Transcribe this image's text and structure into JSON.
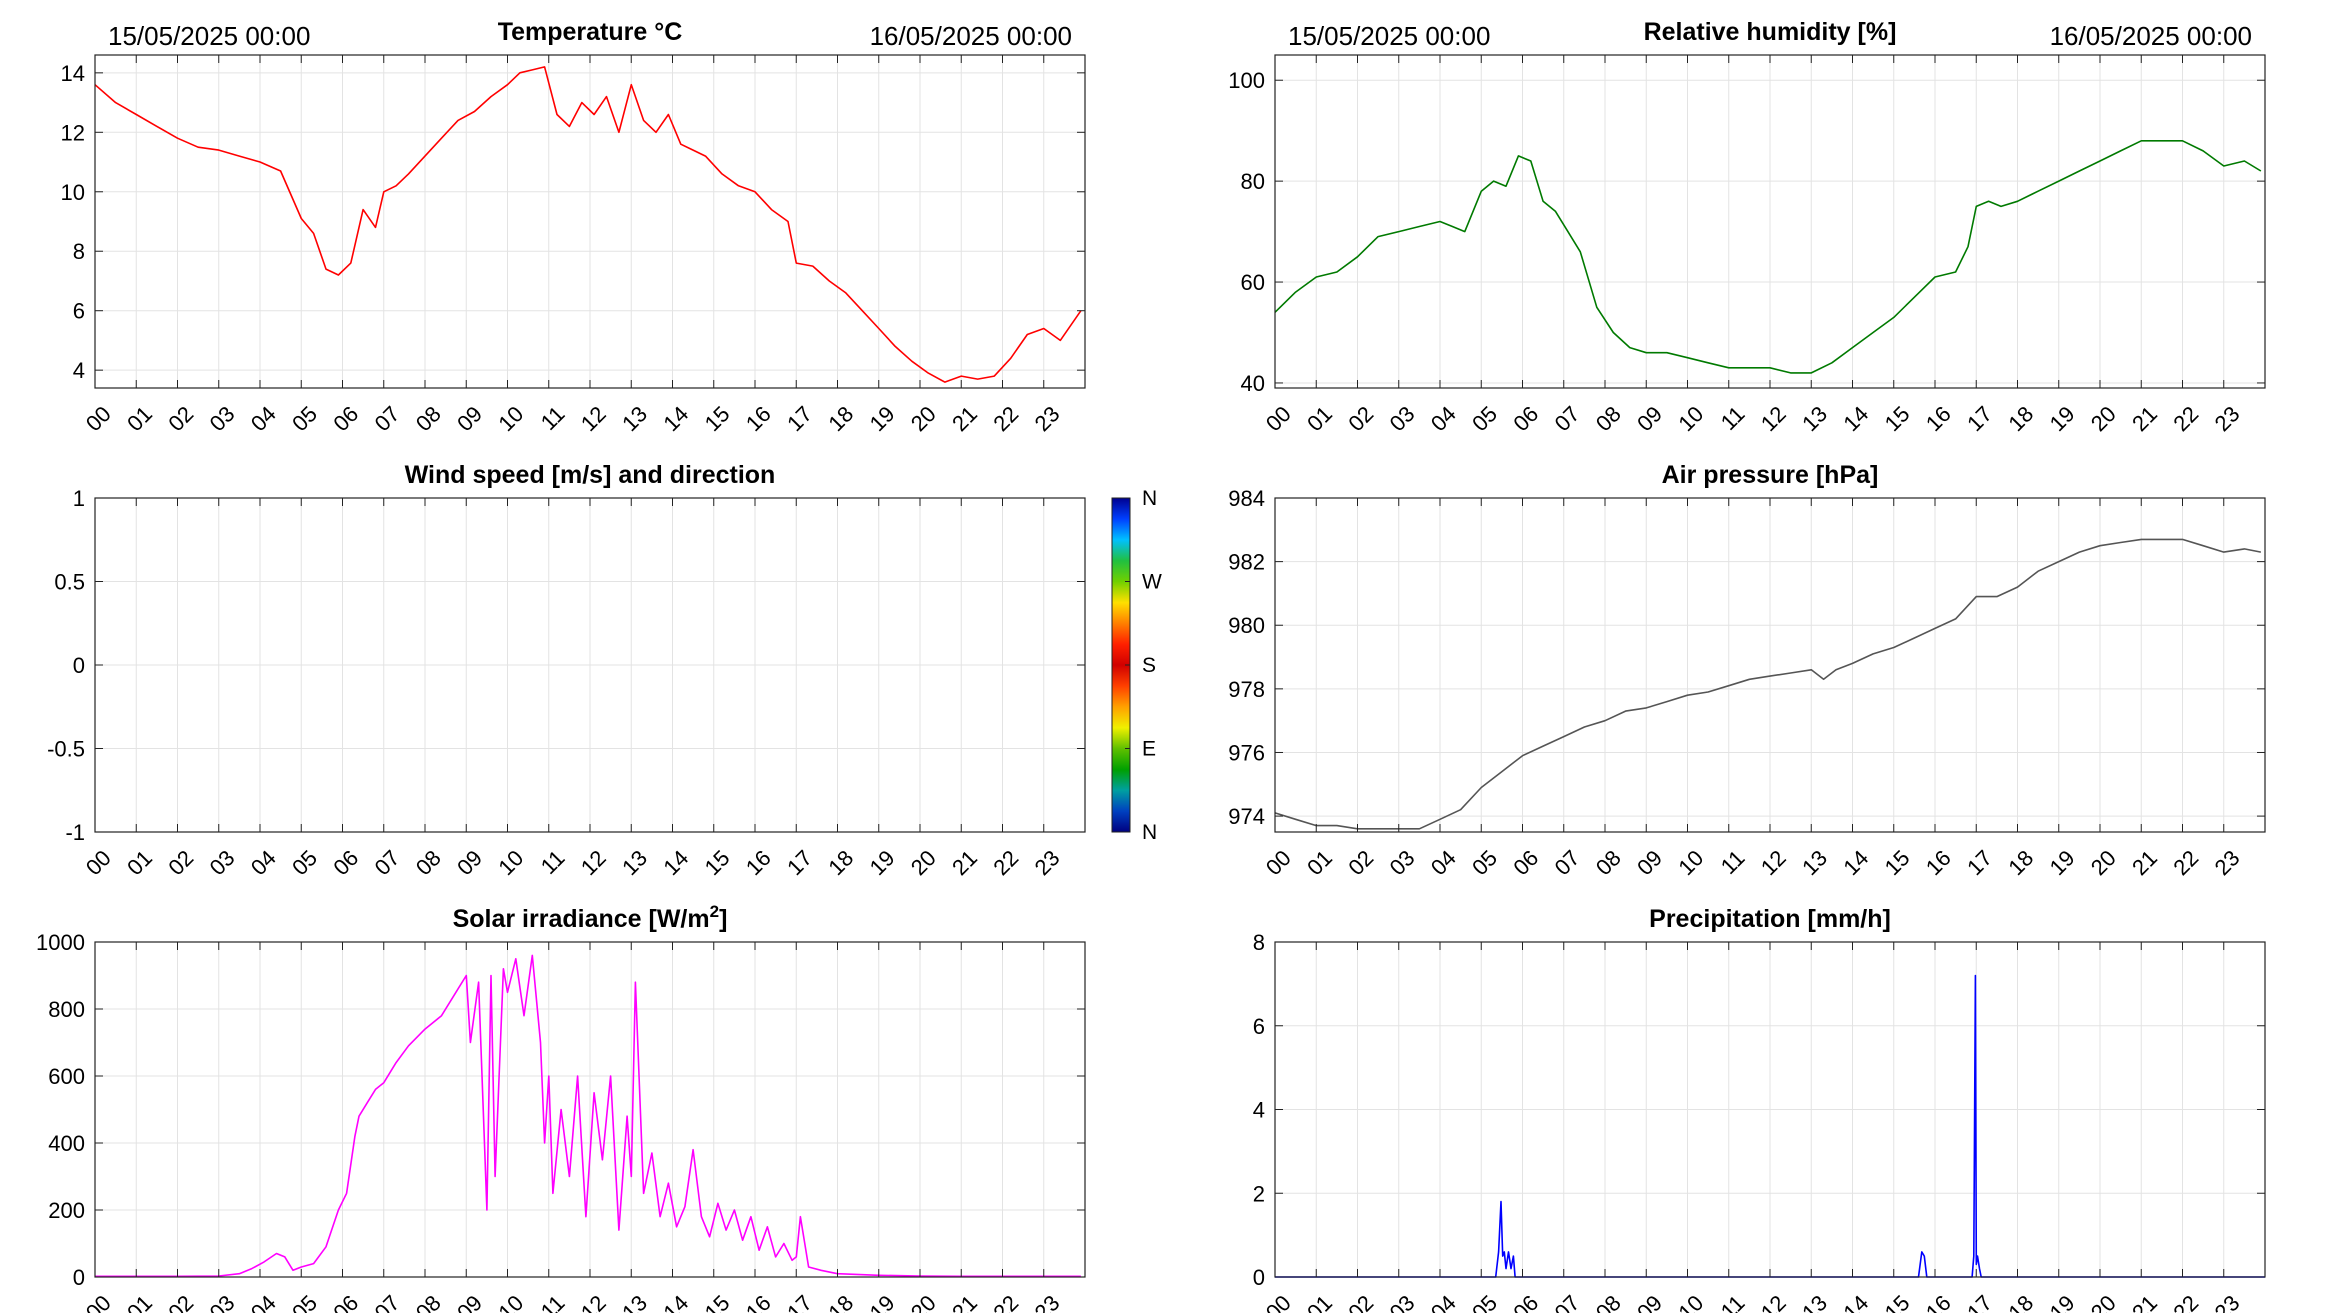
{
  "charts": {
    "temperature": {
      "type": "line",
      "title": "Temperature °C",
      "date_start": "15/05/2025 00:00",
      "date_end": "16/05/2025 00:00",
      "color": "#ff0000",
      "ylim": [
        3.4,
        14.6
      ],
      "yticks": [
        4,
        6,
        8,
        10,
        12,
        14
      ],
      "xlim": [
        0,
        24
      ],
      "series": [
        {
          "x": [
            0,
            0.5,
            1,
            1.5,
            2,
            2.5,
            3,
            3.5,
            4,
            4.5,
            5,
            5.3,
            5.6,
            5.9,
            6.2,
            6.5,
            6.8,
            7,
            7.3,
            7.6,
            8,
            8.4,
            8.8,
            9.2,
            9.6,
            10,
            10.3,
            10.6,
            10.9,
            11.2,
            11.5,
            11.8,
            12.1,
            12.4,
            12.7,
            13,
            13.3,
            13.6,
            13.9,
            14.2,
            14.5,
            14.8,
            15.2,
            15.6,
            16,
            16.4,
            16.8,
            17,
            17.4,
            17.8,
            18.2,
            18.6,
            19,
            19.4,
            19.8,
            20.2,
            20.6,
            21,
            21.4,
            21.8,
            22.2,
            22.6,
            23,
            23.4,
            23.9
          ],
          "y": [
            13.6,
            13.0,
            12.6,
            12.2,
            11.8,
            11.5,
            11.4,
            11.2,
            11.0,
            10.7,
            9.1,
            8.6,
            7.4,
            7.2,
            7.6,
            9.4,
            8.8,
            10.0,
            10.2,
            10.6,
            11.2,
            11.8,
            12.4,
            12.7,
            13.2,
            13.6,
            14.0,
            14.1,
            14.2,
            12.6,
            12.2,
            13.0,
            12.6,
            13.2,
            12.0,
            13.6,
            12.4,
            12.0,
            12.6,
            11.6,
            11.4,
            11.2,
            10.6,
            10.2,
            10.0,
            9.4,
            9.0,
            7.6,
            7.5,
            7.0,
            6.6,
            6.0,
            5.4,
            4.8,
            4.3,
            3.9,
            3.6,
            3.8,
            3.7,
            3.8,
            4.4,
            5.2,
            5.4,
            5.0,
            6.0
          ]
        }
      ]
    },
    "humidity": {
      "type": "line",
      "title": "Relative humidity [%]",
      "date_start": "15/05/2025 00:00",
      "date_end": "16/05/2025 00:00",
      "color": "#007a00",
      "ylim": [
        39,
        105
      ],
      "yticks": [
        40,
        60,
        80,
        100
      ],
      "xlim": [
        0,
        24
      ],
      "series": [
        {
          "x": [
            0,
            0.5,
            1,
            1.5,
            2,
            2.5,
            3,
            3.5,
            4,
            4.3,
            4.6,
            5,
            5.3,
            5.6,
            5.9,
            6.2,
            6.5,
            6.8,
            7.1,
            7.4,
            7.8,
            8.2,
            8.6,
            9,
            9.5,
            10,
            10.5,
            11,
            11.5,
            12,
            12.5,
            13,
            13.5,
            14,
            14.5,
            15,
            15.5,
            16,
            16.5,
            16.8,
            17,
            17.3,
            17.6,
            18,
            18.5,
            19,
            19.5,
            20,
            20.5,
            21,
            21.5,
            22,
            22.5,
            23,
            23.5,
            23.9
          ],
          "y": [
            54,
            58,
            61,
            62,
            65,
            69,
            70,
            71,
            72,
            71,
            70,
            78,
            80,
            79,
            85,
            84,
            76,
            74,
            70,
            66,
            55,
            50,
            47,
            46,
            46,
            45,
            44,
            43,
            43,
            43,
            42,
            42,
            44,
            47,
            50,
            53,
            57,
            61,
            62,
            67,
            75,
            76,
            75,
            76,
            78,
            80,
            82,
            84,
            86,
            88,
            88,
            88,
            86,
            83,
            84,
            82
          ]
        }
      ]
    },
    "wind": {
      "type": "line",
      "title": "Wind speed [m/s] and direction",
      "ylim": [
        -1,
        1
      ],
      "yticks": [
        "-1",
        "-0.5",
        "0",
        "0.5",
        "1"
      ],
      "xlim": [
        0,
        24
      ],
      "colorbar": {
        "labels": [
          "N",
          "W",
          "S",
          "E",
          "N"
        ],
        "colors": [
          "#000090",
          "#0040ff",
          "#00c0ff",
          "#20c040",
          "#70d000",
          "#ffe000",
          "#ff8000",
          "#ff2000",
          "#d00000",
          "#ff4000",
          "#ffa000",
          "#f0f000",
          "#60c000",
          "#00a000",
          "#00a0a0",
          "#0040c0",
          "#000080"
        ]
      },
      "series": []
    },
    "pressure": {
      "type": "line",
      "title": "Air pressure [hPa]",
      "color": "#555555",
      "ylim": [
        973.5,
        984
      ],
      "yticks": [
        974,
        976,
        978,
        980,
        982,
        984
      ],
      "xlim": [
        0,
        24
      ],
      "series": [
        {
          "x": [
            0,
            0.5,
            1,
            1.5,
            2,
            2.5,
            3,
            3.5,
            4,
            4.5,
            5,
            5.5,
            6,
            6.5,
            7,
            7.5,
            8,
            8.5,
            9,
            9.5,
            10,
            10.5,
            11,
            11.5,
            12,
            12.5,
            13,
            13.3,
            13.6,
            14,
            14.5,
            15,
            15.5,
            16,
            16.5,
            17,
            17.5,
            18,
            18.5,
            19,
            19.5,
            20,
            20.5,
            21,
            21.5,
            22,
            22.5,
            23,
            23.5,
            23.9
          ],
          "y": [
            974.1,
            973.9,
            973.7,
            973.7,
            973.6,
            973.6,
            973.6,
            973.6,
            973.9,
            974.2,
            974.9,
            975.4,
            975.9,
            976.2,
            976.5,
            976.8,
            977.0,
            977.3,
            977.4,
            977.6,
            977.8,
            977.9,
            978.1,
            978.3,
            978.4,
            978.5,
            978.6,
            978.3,
            978.6,
            978.8,
            979.1,
            979.3,
            979.6,
            979.9,
            980.2,
            980.9,
            980.9,
            981.2,
            981.7,
            982.0,
            982.3,
            982.5,
            982.6,
            982.7,
            982.7,
            982.7,
            982.5,
            982.3,
            982.4,
            982.3
          ]
        }
      ]
    },
    "solar": {
      "type": "line",
      "title": "Solar irradiance [W/m",
      "title_sup": "2",
      "title_end": "]",
      "color": "#ff00ff",
      "ylim": [
        0,
        1000
      ],
      "yticks": [
        0,
        200,
        400,
        600,
        800,
        1000
      ],
      "xlim": [
        0,
        24
      ],
      "series": [
        {
          "x": [
            0,
            1,
            2,
            3,
            3.5,
            3.8,
            4.1,
            4.4,
            4.6,
            4.8,
            5,
            5.3,
            5.6,
            5.9,
            6.1,
            6.3,
            6.4,
            6.6,
            6.8,
            7,
            7.3,
            7.6,
            8,
            8.4,
            8.8,
            9,
            9.1,
            9.3,
            9.5,
            9.6,
            9.7,
            9.9,
            10,
            10.2,
            10.4,
            10.6,
            10.8,
            10.9,
            11,
            11.1,
            11.3,
            11.5,
            11.7,
            11.9,
            12.1,
            12.3,
            12.5,
            12.7,
            12.9,
            13,
            13.1,
            13.3,
            13.5,
            13.7,
            13.9,
            14.1,
            14.3,
            14.5,
            14.7,
            14.9,
            15.1,
            15.3,
            15.5,
            15.7,
            15.9,
            16.1,
            16.3,
            16.5,
            16.7,
            16.9,
            17,
            17.1,
            17.3,
            17.6,
            18,
            19,
            20,
            21,
            22,
            23,
            23.9
          ],
          "y": [
            2,
            2,
            2,
            3,
            10,
            25,
            45,
            70,
            60,
            20,
            30,
            40,
            90,
            200,
            250,
            420,
            480,
            520,
            560,
            580,
            640,
            690,
            740,
            780,
            860,
            900,
            700,
            880,
            200,
            900,
            300,
            920,
            850,
            950,
            780,
            960,
            700,
            400,
            600,
            250,
            500,
            300,
            600,
            180,
            550,
            350,
            600,
            140,
            480,
            300,
            880,
            250,
            370,
            180,
            280,
            150,
            210,
            380,
            180,
            120,
            220,
            140,
            200,
            110,
            180,
            80,
            150,
            60,
            100,
            50,
            60,
            180,
            30,
            20,
            10,
            5,
            3,
            2,
            2,
            2,
            2
          ]
        }
      ]
    },
    "precipitation": {
      "type": "line",
      "title": "Precipitation [mm/h]",
      "color": "#0000ff",
      "ylim": [
        0,
        8
      ],
      "yticks": [
        0,
        2,
        4,
        6,
        8
      ],
      "xlim": [
        0,
        24
      ],
      "series": [
        {
          "x": [
            0,
            5.35,
            5.42,
            5.48,
            5.52,
            5.56,
            5.6,
            5.66,
            5.72,
            5.78,
            5.82,
            15.6,
            15.68,
            15.74,
            15.8,
            16.9,
            16.94,
            16.98,
            17.0,
            17.03,
            17.08,
            17.12,
            24
          ],
          "y": [
            0,
            0,
            0.6,
            1.8,
            0.5,
            0.6,
            0.2,
            0.6,
            0.2,
            0.5,
            0,
            0,
            0.6,
            0.5,
            0,
            0,
            0.5,
            7.2,
            0.3,
            0.5,
            0.2,
            0,
            0
          ]
        }
      ]
    }
  },
  "hour_labels": [
    "00",
    "01",
    "02",
    "03",
    "04",
    "05",
    "06",
    "07",
    "08",
    "09",
    "10",
    "11",
    "12",
    "13",
    "14",
    "15",
    "16",
    "17",
    "18",
    "19",
    "20",
    "21",
    "22",
    "23"
  ]
}
